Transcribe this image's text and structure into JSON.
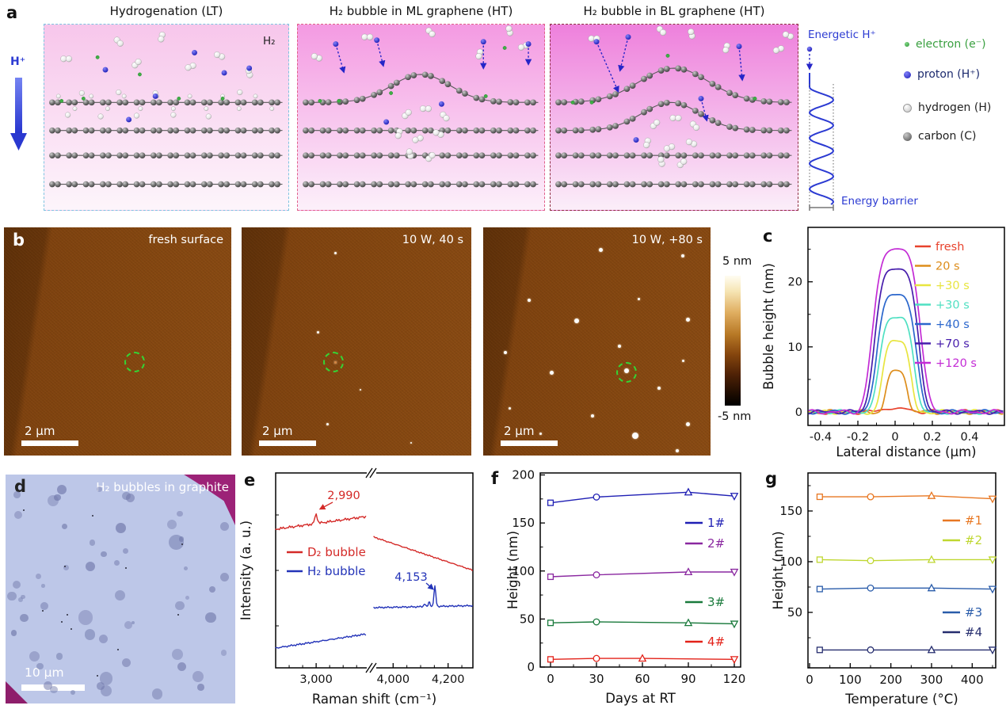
{
  "panels": {
    "a": {
      "label": "a",
      "hplus": "H⁺",
      "h2_label": "H₂",
      "schemes": [
        {
          "title": "Hydrogenation (LT)",
          "border": "#7ec3e0",
          "bg_top": "#f7c6eb",
          "bg_bottom": "#fdf5fb"
        },
        {
          "title": "H₂ bubble in ML graphene (HT)",
          "border": "#e0608a",
          "bg_top": "#f49ae2",
          "bg_bottom": "#fcf0fa"
        },
        {
          "title": "H₂ bubble in BL graphene (HT)",
          "border": "#8c2a3e",
          "bg_top": "#ee80dc",
          "bg_bottom": "#fbeef9"
        }
      ],
      "energy": {
        "top_label": "Energetic H⁺",
        "bottom_label": "Energy barrier",
        "color": "#2b3ad2"
      },
      "legend": [
        {
          "label": "electron (e⁻)",
          "kind": "electron",
          "text_color": "#3aa040"
        },
        {
          "label": "proton (H⁺)",
          "kind": "proton",
          "text_color": "#1c2a6e"
        },
        {
          "label": "hydrogen (H)",
          "kind": "hydrogen",
          "text_color": "#222222"
        },
        {
          "label": "carbon (C)",
          "kind": "carbon",
          "text_color": "#222222"
        }
      ]
    },
    "b": {
      "label": "b",
      "images": [
        {
          "caption": "fresh surface",
          "scale_label": "2 μm"
        },
        {
          "caption": "10 W, 40 s",
          "scale_label": "2 μm"
        },
        {
          "caption": "10 W, +80 s",
          "scale_label": "2 μm"
        }
      ],
      "colorbar": {
        "top": "5 nm",
        "bottom": "-5 nm"
      }
    },
    "c": {
      "label": "c"
    },
    "d": {
      "label": "d",
      "caption": "H₂ bubbles in graphite",
      "scale_label": "10 μm"
    },
    "e": {
      "label": "e"
    },
    "f": {
      "label": "f"
    },
    "g": {
      "label": "g"
    }
  },
  "chart_data": [
    {
      "id": "c",
      "type": "line",
      "xlabel": "Lateral distance (μm)",
      "ylabel": "Bubble height (nm)",
      "xlim": [
        -0.47,
        0.59
      ],
      "ylim": [
        -2,
        28.5
      ],
      "xticks": [
        -0.4,
        -0.2,
        0,
        0.2,
        0.4
      ],
      "yticks": [
        0,
        10,
        20
      ],
      "grid": false,
      "legend_position": "top-right",
      "series": [
        {
          "name": "fresh",
          "color": "#e8432d",
          "peak_height_nm": 0.5,
          "half_width_um": 0.1
        },
        {
          "name": "20 s",
          "color": "#dd8d1b",
          "peak_height_nm": 6.3,
          "half_width_um": 0.065
        },
        {
          "name": "+30 s",
          "color": "#e8e53f",
          "peak_height_nm": 11.0,
          "half_width_um": 0.085
        },
        {
          "name": "+30 s",
          "color": "#4fe0c2",
          "peak_height_nm": 14.5,
          "half_width_um": 0.105
        },
        {
          "name": "+40 s",
          "color": "#2a66cc",
          "peak_height_nm": 18.0,
          "half_width_um": 0.118
        },
        {
          "name": "+70 s",
          "color": "#471dac",
          "peak_height_nm": 22.0,
          "half_width_um": 0.13
        },
        {
          "name": "+120 s",
          "color": "#c32bd5",
          "peak_height_nm": 25.0,
          "half_width_um": 0.142
        }
      ]
    },
    {
      "id": "e",
      "type": "line",
      "xlabel": "Raman shift (cm⁻¹)",
      "ylabel": "Intensity (a. u.)",
      "axis_break": [
        3760,
        3930
      ],
      "xticks_labels": [
        "3,000",
        "4,000",
        "4,200"
      ],
      "xticks": [
        3000,
        4000,
        4200
      ],
      "series": [
        {
          "name": "D₂ bubble",
          "color": "#d42a28",
          "peak_cm": 2990,
          "peak_label": "2,990"
        },
        {
          "name": "H₂ bubble",
          "color": "#2333b8",
          "peak_cm": 4153,
          "peak_label": "4,153"
        }
      ]
    },
    {
      "id": "f",
      "type": "line-scatter",
      "xlabel": "Days at RT",
      "ylabel": "Height (nm)",
      "xlim": [
        -7,
        131
      ],
      "ylim": [
        0,
        200
      ],
      "xticks": [
        0,
        30,
        60,
        90,
        120
      ],
      "yticks": [
        0,
        50,
        100,
        150,
        200
      ],
      "markers_by_point": [
        "square",
        "circle",
        "triangle-up",
        "triangle-down"
      ],
      "series": [
        {
          "name": "1#",
          "color": "#1f1fb4",
          "x": [
            0,
            30,
            90,
            120
          ],
          "y": [
            171,
            177,
            182,
            178
          ]
        },
        {
          "name": "2#",
          "color": "#8a28a0",
          "x": [
            0,
            30,
            90,
            120
          ],
          "y": [
            94,
            96,
            99,
            99
          ]
        },
        {
          "name": "3#",
          "color": "#1a7a3c",
          "x": [
            0,
            30,
            90,
            120
          ],
          "y": [
            46,
            47,
            46,
            45
          ]
        },
        {
          "name": "4#",
          "color": "#e32219",
          "x": [
            0,
            30,
            60,
            120
          ],
          "y": [
            8,
            9,
            9,
            8
          ]
        }
      ]
    },
    {
      "id": "g",
      "type": "line-scatter",
      "xlabel": "Temperature (°C)",
      "ylabel": "Height (nm)",
      "xlim": [
        -5,
        470
      ],
      "ylim": [
        -5,
        190
      ],
      "xticks": [
        0,
        100,
        200,
        300,
        400
      ],
      "yticks": [
        50,
        100,
        150
      ],
      "markers_by_point": [
        "square",
        "circle",
        "triangle-up",
        "triangle-down"
      ],
      "series": [
        {
          "name": "#1",
          "color": "#e87722",
          "x": [
            25,
            150,
            300,
            450
          ],
          "y": [
            164,
            164,
            165,
            162
          ]
        },
        {
          "name": "#2",
          "color": "#bfd730",
          "x": [
            25,
            150,
            300,
            450
          ],
          "y": [
            102,
            101,
            102,
            102
          ]
        },
        {
          "name": "#3",
          "color": "#2a5caa",
          "x": [
            25,
            150,
            300,
            450
          ],
          "y": [
            73,
            74,
            74,
            73
          ]
        },
        {
          "name": "#4",
          "color": "#252d6e",
          "x": [
            25,
            150,
            300,
            450
          ],
          "y": [
            13,
            13,
            13,
            13
          ]
        }
      ]
    }
  ]
}
